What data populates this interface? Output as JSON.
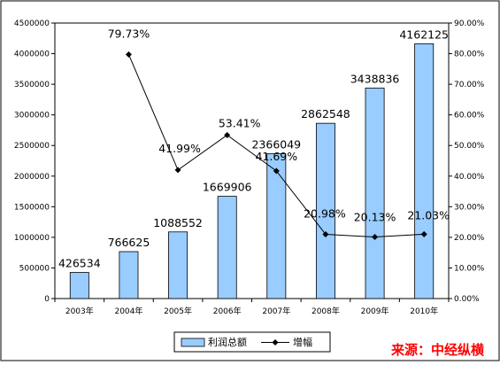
{
  "chart_data": {
    "type": "bar",
    "categories": [
      "2003年",
      "2004年",
      "2005年",
      "2006年",
      "2007年",
      "2008年",
      "2009年",
      "2010年"
    ],
    "series": [
      {
        "name": "利润总额",
        "type": "bar",
        "axis": "left",
        "values": [
          426534,
          766625,
          1088552,
          1669906,
          2366049,
          2862548,
          3438836,
          4162125
        ],
        "labels": [
          "426534",
          "766625",
          "1088552",
          "1669906",
          "2366049",
          "2862548",
          "3438836",
          "4162125"
        ],
        "color": "#99ccff"
      },
      {
        "name": "增幅",
        "type": "line",
        "axis": "right",
        "values": [
          null,
          79.73,
          41.99,
          53.41,
          41.69,
          20.98,
          20.13,
          21.03
        ],
        "labels": [
          "",
          "79.73%",
          "41.99%",
          "53.41%",
          "41.69%",
          "20.98%",
          "20.13%",
          "21.03%"
        ],
        "color": "#000000"
      }
    ],
    "y_left": {
      "lim": [
        0,
        4500000
      ],
      "ticks": [
        "0",
        "500000",
        "1000000",
        "1500000",
        "2000000",
        "2500000",
        "3000000",
        "3500000",
        "4000000",
        "4500000"
      ]
    },
    "y_right": {
      "lim": [
        0,
        90
      ],
      "ticks": [
        "0.00%",
        "10.00%",
        "20.00%",
        "30.00%",
        "40.00%",
        "50.00%",
        "60.00%",
        "70.00%",
        "80.00%",
        "90.00%"
      ]
    },
    "legend": {
      "position": "bottom",
      "items": [
        "利润总额",
        "增幅"
      ]
    },
    "grid": false
  },
  "source_note": "来源：中经纵横"
}
